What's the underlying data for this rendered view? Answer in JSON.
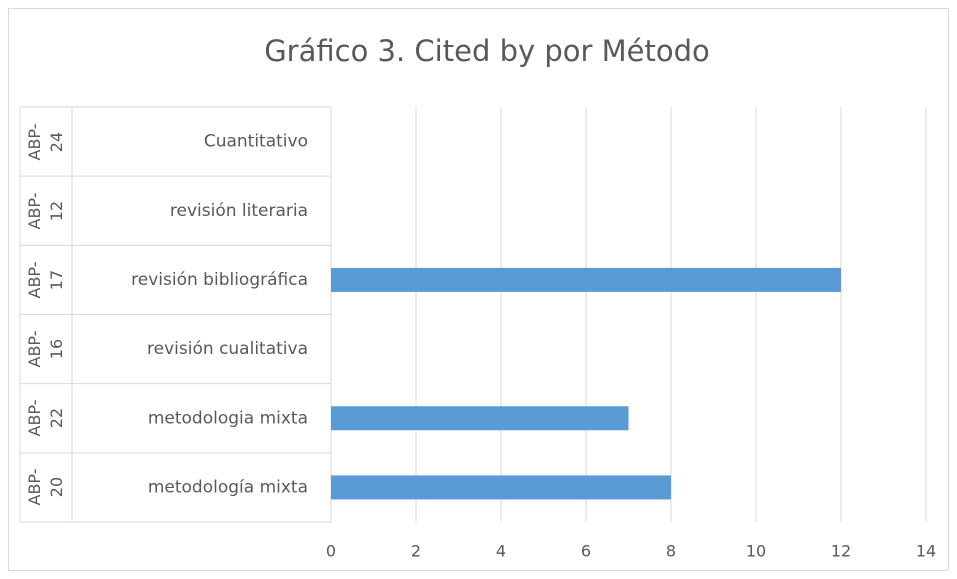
{
  "chart_data": {
    "type": "bar",
    "orientation": "horizontal",
    "title": "Gráfico 3. Cited by por Método",
    "groups": [
      "ABP-24",
      "ABP-12",
      "ABP-17",
      "ABP-16",
      "ABP-22",
      "ABP-20"
    ],
    "categories": [
      "Cuantitativo",
      "revisión literaria",
      "revisión bibliográfica",
      "revisión cualitativa",
      "metodologia mixta",
      "metodología mixta"
    ],
    "values": [
      0,
      0,
      12,
      0,
      7,
      8
    ],
    "color": "#5b9bd5",
    "xlim": [
      0,
      14
    ],
    "xticks": [
      0,
      2,
      4,
      6,
      8,
      10,
      12,
      14
    ],
    "grid": true
  }
}
